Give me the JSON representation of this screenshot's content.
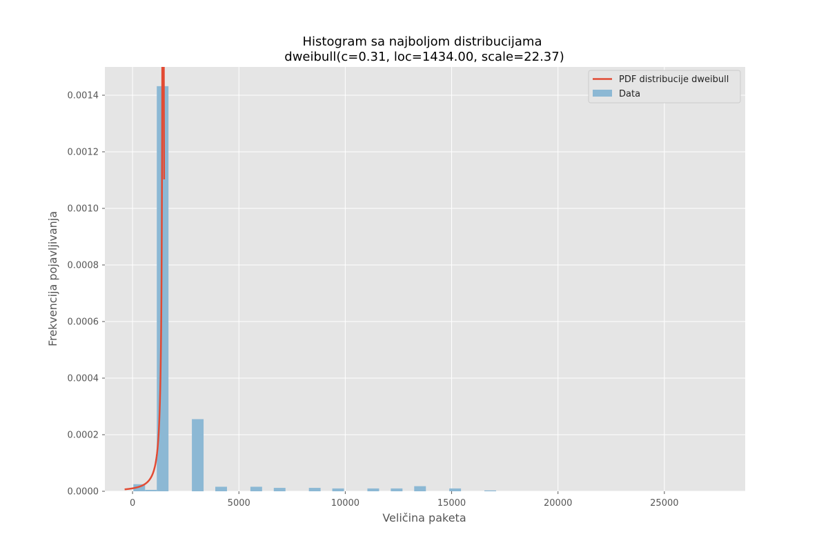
{
  "chart_data": {
    "type": "bar",
    "title": "Histogram sa najboljom distribucijama",
    "subtitle": "dweibull(c=0.31, loc=1434.00, scale=22.37)",
    "xlabel": "Veličina paketa",
    "ylabel": "Frekvencija pojavljivanja",
    "xlim": [
      -1300,
      28800
    ],
    "ylim": [
      0,
      0.0015
    ],
    "xticks": [
      0,
      5000,
      10000,
      15000,
      20000,
      25000
    ],
    "xtick_labels": [
      "0",
      "5000",
      "10000",
      "15000",
      "20000",
      "25000"
    ],
    "yticks": [
      0,
      0.0002,
      0.0004,
      0.0006,
      0.0008,
      0.001,
      0.0012,
      0.0014
    ],
    "ytick_labels": [
      "0.0000",
      "0.0002",
      "0.0004",
      "0.0006",
      "0.0008",
      "0.0010",
      "0.0012",
      "0.0014"
    ],
    "grid": true,
    "legend_position": "top-right",
    "bin_width": 550,
    "histogram": {
      "name": "Data",
      "color": "#8cb8d4",
      "bins": [
        {
          "x_start": 40,
          "value": 2.5e-05
        },
        {
          "x_start": 590,
          "value": 5e-06
        },
        {
          "x_start": 1140,
          "value": 0.001432
        },
        {
          "x_start": 2790,
          "value": 0.000255
        },
        {
          "x_start": 3890,
          "value": 1.6e-05
        },
        {
          "x_start": 5540,
          "value": 1.6e-05
        },
        {
          "x_start": 6640,
          "value": 1.2e-05
        },
        {
          "x_start": 8290,
          "value": 1.2e-05
        },
        {
          "x_start": 9390,
          "value": 1e-05
        },
        {
          "x_start": 11040,
          "value": 1e-05
        },
        {
          "x_start": 12140,
          "value": 1e-05
        },
        {
          "x_start": 13240,
          "value": 1.8e-05
        },
        {
          "x_start": 14890,
          "value": 1e-05
        },
        {
          "x_start": 16540,
          "value": 3e-06
        }
      ]
    },
    "pdf": {
      "name": "PDF distribucije dweibull",
      "color": "#e24a33",
      "distribution": "dweibull",
      "params": {
        "c": 0.31,
        "loc": 1434.0,
        "scale": 22.37
      },
      "x_range": [
        -370,
        1484
      ]
    }
  },
  "legend": [
    {
      "label": "PDF distribucije dweibull",
      "kind": "line",
      "color": "#e24a33"
    },
    {
      "label": "Data",
      "kind": "patch",
      "color": "#8cb8d4"
    }
  ],
  "colors": {
    "axes_background": "#e5e5e5",
    "grid": "#ffffff",
    "text": "#555555",
    "title": "#000000"
  }
}
